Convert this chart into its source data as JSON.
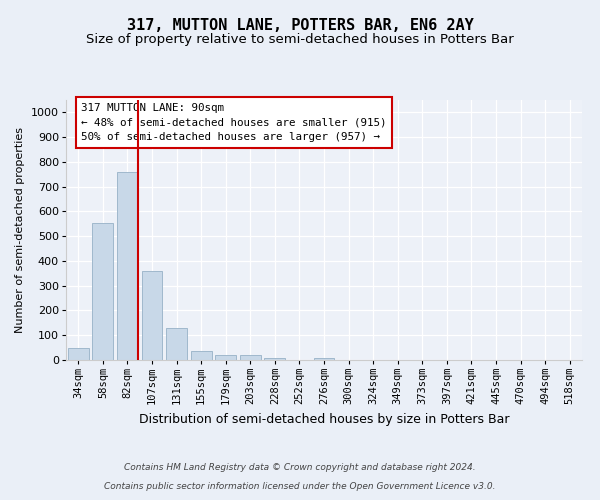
{
  "title": "317, MUTTON LANE, POTTERS BAR, EN6 2AY",
  "subtitle": "Size of property relative to semi-detached houses in Potters Bar",
  "xlabel": "Distribution of semi-detached houses by size in Potters Bar",
  "ylabel": "Number of semi-detached properties",
  "footer1": "Contains HM Land Registry data © Crown copyright and database right 2024.",
  "footer2": "Contains public sector information licensed under the Open Government Licence v3.0.",
  "bar_labels": [
    "34sqm",
    "58sqm",
    "82sqm",
    "107sqm",
    "131sqm",
    "155sqm",
    "179sqm",
    "203sqm",
    "228sqm",
    "252sqm",
    "276sqm",
    "300sqm",
    "324sqm",
    "349sqm",
    "373sqm",
    "397sqm",
    "421sqm",
    "445sqm",
    "470sqm",
    "494sqm",
    "518sqm"
  ],
  "bar_values": [
    50,
    555,
    760,
    360,
    130,
    37,
    20,
    20,
    8,
    0,
    10,
    0,
    0,
    0,
    0,
    0,
    0,
    0,
    0,
    0,
    0
  ],
  "bar_color": "#c8d8e8",
  "bar_edge_color": "#a0b8cc",
  "vline_x_index": 2,
  "vline_color": "#cc0000",
  "annotation_text": "317 MUTTON LANE: 90sqm\n← 48% of semi-detached houses are smaller (915)\n50% of semi-detached houses are larger (957) →",
  "annotation_box_color": "#ffffff",
  "annotation_box_edge": "#cc0000",
  "ylim": [
    0,
    1050
  ],
  "yticks": [
    0,
    100,
    200,
    300,
    400,
    500,
    600,
    700,
    800,
    900,
    1000
  ],
  "bg_color": "#eaeff7",
  "plot_bg_color": "#edf1f8",
  "title_fontsize": 11,
  "subtitle_fontsize": 9.5,
  "axis_label_fontsize": 8,
  "tick_fontsize": 7.5
}
